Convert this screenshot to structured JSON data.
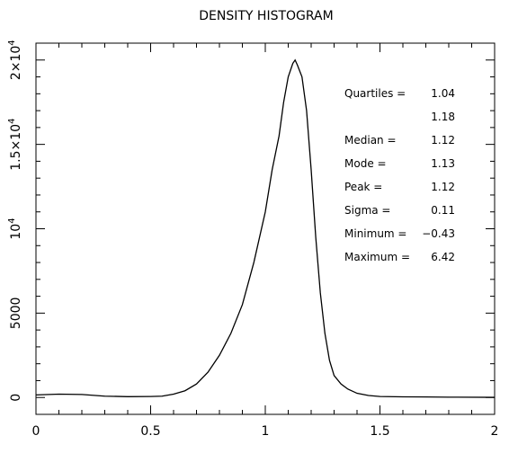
{
  "chart_data": {
    "type": "histogram",
    "title": "DENSITY HISTOGRAM",
    "xlabel": "",
    "ylabel": "",
    "xlim": [
      0,
      2
    ],
    "ylim": [
      -1000,
      21000
    ],
    "grid": false,
    "x_ticks": [
      {
        "value": 0,
        "label": "0"
      },
      {
        "value": 0.5,
        "label": "0.5"
      },
      {
        "value": 1,
        "label": "1"
      },
      {
        "value": 1.5,
        "label": "1.5"
      },
      {
        "value": 2,
        "label": "2"
      }
    ],
    "y_ticks": [
      {
        "value": 0,
        "label": "0",
        "mant": "",
        "exp": ""
      },
      {
        "value": 5000,
        "label": "5000",
        "mant": "",
        "exp": ""
      },
      {
        "value": 10000,
        "label": "",
        "mant": "10",
        "exp": "4"
      },
      {
        "value": 15000,
        "label": "",
        "mant": "1.5×10",
        "exp": "4"
      },
      {
        "value": 20000,
        "label": "",
        "mant": "2×10",
        "exp": "4"
      }
    ],
    "x": [
      0.0,
      0.1,
      0.2,
      0.3,
      0.4,
      0.5,
      0.55,
      0.6,
      0.65,
      0.7,
      0.75,
      0.8,
      0.85,
      0.9,
      0.95,
      1.0,
      1.03,
      1.06,
      1.08,
      1.1,
      1.12,
      1.13,
      1.14,
      1.16,
      1.18,
      1.2,
      1.22,
      1.24,
      1.26,
      1.28,
      1.3,
      1.33,
      1.36,
      1.4,
      1.45,
      1.5,
      1.6,
      1.7,
      1.8,
      2.0
    ],
    "y": [
      150,
      200,
      180,
      80,
      50,
      60,
      80,
      200,
      400,
      800,
      1500,
      2500,
      3800,
      5500,
      8000,
      11000,
      13500,
      15500,
      17500,
      19000,
      19800,
      20000,
      19700,
      19000,
      17000,
      13500,
      9500,
      6200,
      3800,
      2200,
      1300,
      800,
      500,
      250,
      120,
      60,
      40,
      30,
      20,
      10
    ],
    "stats": [
      {
        "label": "Quartiles =",
        "value": "1.04"
      },
      {
        "label": "",
        "value": "1.18"
      },
      {
        "label": "Median =",
        "value": "1.12"
      },
      {
        "label": "Mode =",
        "value": "1.13"
      },
      {
        "label": "Peak =",
        "value": "1.12"
      },
      {
        "label": "Sigma =",
        "value": "0.11"
      },
      {
        "label": "Minimum =",
        "value": "−0.43"
      },
      {
        "label": "Maximum =",
        "value": "6.42"
      }
    ]
  }
}
